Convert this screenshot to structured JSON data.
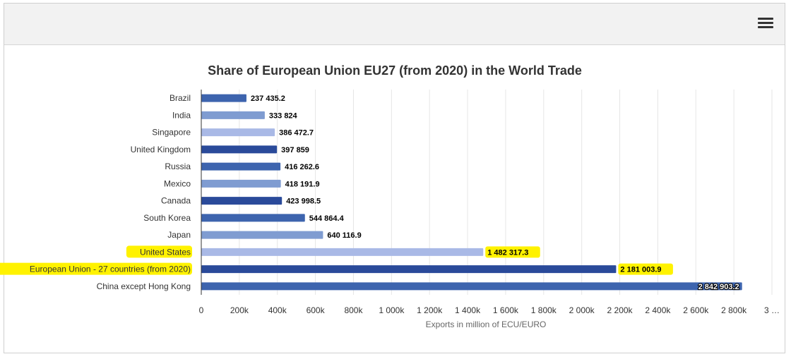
{
  "menu": {
    "icon": "hamburger-icon"
  },
  "chart_data": {
    "type": "bar",
    "orientation": "horizontal",
    "title": "Share of European Union EU27 (from 2020) in the World Trade",
    "xlabel": "Exports in million of ECU/EURO",
    "ylabel": "",
    "xlim": [
      0,
      3000000
    ],
    "grid": true,
    "x_tick_labels": [
      "0",
      "200k",
      "400k",
      "600k",
      "800k",
      "1 000k",
      "1 200k",
      "1 400k",
      "1 600k",
      "1 800k",
      "2 000k",
      "2 200k",
      "2 400k",
      "2 600k",
      "2 800k",
      "3 …"
    ],
    "bars": [
      {
        "category": "Brazil",
        "value": 237435.2,
        "label": "237 435.2",
        "color": "#3d64ae",
        "highlight": false
      },
      {
        "category": "India",
        "value": 333824,
        "label": "333 824",
        "color": "#7f9cd1",
        "highlight": false
      },
      {
        "category": "Singapore",
        "value": 386472.7,
        "label": "386 472.7",
        "color": "#a9b9e6",
        "highlight": false
      },
      {
        "category": "United Kingdom",
        "value": 397859,
        "label": "397 859",
        "color": "#2a4a9a",
        "highlight": false
      },
      {
        "category": "Russia",
        "value": 416262.6,
        "label": "416 262.6",
        "color": "#3d64ae",
        "highlight": false
      },
      {
        "category": "Mexico",
        "value": 418191.9,
        "label": "418 191.9",
        "color": "#7f9cd1",
        "highlight": false
      },
      {
        "category": "Canada",
        "value": 423998.5,
        "label": "423 998.5",
        "color": "#2a4a9a",
        "highlight": false
      },
      {
        "category": "South Korea",
        "value": 544864.4,
        "label": "544 864.4",
        "color": "#3d64ae",
        "highlight": false
      },
      {
        "category": "Japan",
        "value": 640116.9,
        "label": "640 116.9",
        "color": "#7f9cd1",
        "highlight": false
      },
      {
        "category": "United States",
        "value": 1482317.3,
        "label": "1 482 317.3",
        "color": "#a9b9e6",
        "highlight": true
      },
      {
        "category": "European Union - 27 countries (from 2020)",
        "value": 2181003.9,
        "label": "2 181 003.9",
        "color": "#2a4a9a",
        "highlight": true
      },
      {
        "category": "China except Hong Kong",
        "value": 2842903.2,
        "label": "2 842 903.2",
        "color": "#3d64ae",
        "highlight": false,
        "label_inside": true
      }
    ],
    "highlight_color": "#fff200"
  }
}
